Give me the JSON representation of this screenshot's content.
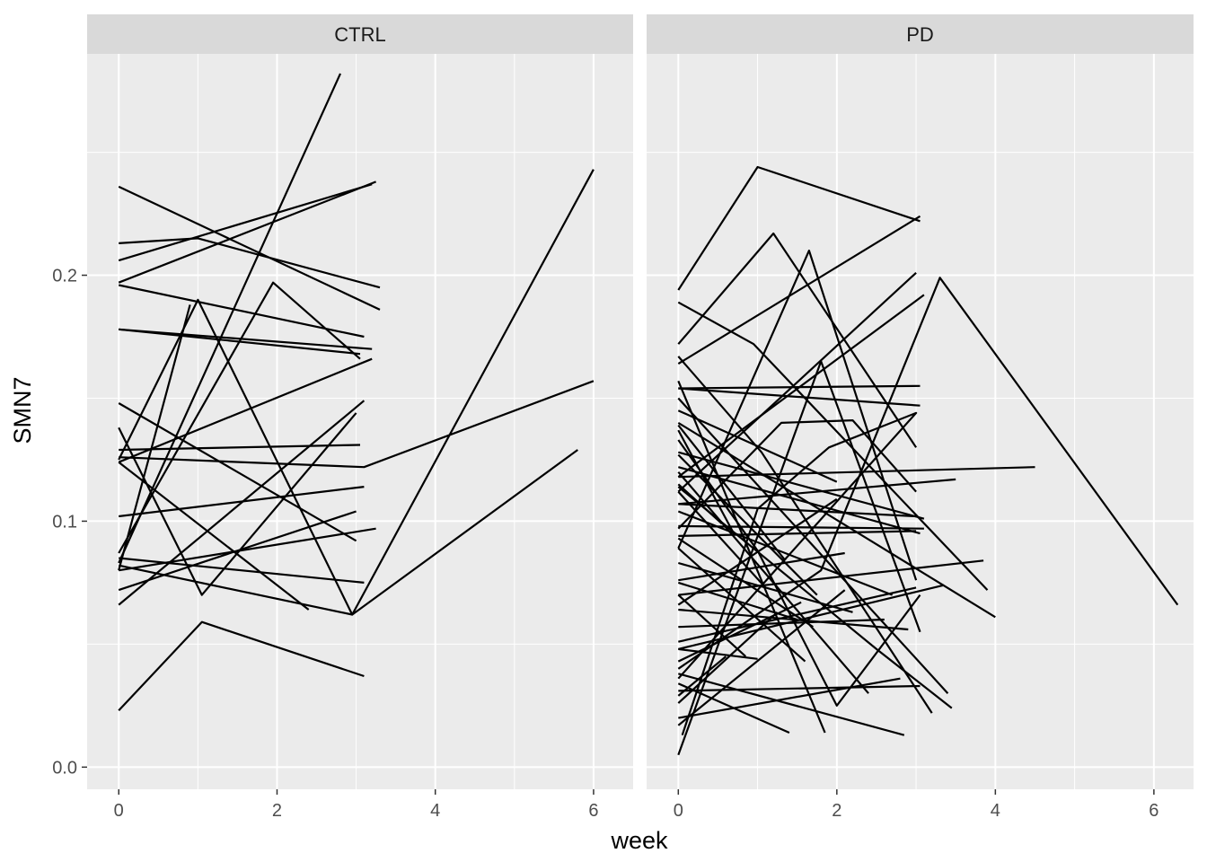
{
  "chart_data": {
    "type": "line",
    "xlabel": "week",
    "ylabel": "SMN7",
    "xlim": [
      -0.4,
      6.5
    ],
    "ylim": [
      -0.009,
      0.29
    ],
    "x_ticks": [
      0,
      2,
      4,
      6
    ],
    "x_tick_labels": [
      "0",
      "2",
      "4",
      "6"
    ],
    "y_ticks": [
      0.0,
      0.1,
      0.2
    ],
    "y_tick_labels": [
      "0.0",
      "0.1",
      "0.2"
    ],
    "grid": true,
    "legend": "none",
    "colors": {
      "panel_bg": "#EBEBEB",
      "strip_bg": "#D9D9D9",
      "grid": "#FFFFFF",
      "line": "#000000",
      "tick": "#333333"
    },
    "facets": [
      {
        "label": "CTRL",
        "series": [
          {
            "x": [
              0,
              2.8
            ],
            "y": [
              0.083,
              0.282
            ]
          },
          {
            "x": [
              0,
              1.0,
              2.95,
              6.0
            ],
            "y": [
              0.125,
              0.19,
              0.062,
              0.243
            ]
          },
          {
            "x": [
              0,
              3.3
            ],
            "y": [
              0.236,
              0.186
            ]
          },
          {
            "x": [
              0,
              3.2
            ],
            "y": [
              0.206,
              0.237
            ]
          },
          {
            "x": [
              0,
              3.25
            ],
            "y": [
              0.197,
              0.238
            ]
          },
          {
            "x": [
              0,
              1.0,
              3.3
            ],
            "y": [
              0.213,
              0.215,
              0.195
            ]
          },
          {
            "x": [
              0,
              3.1
            ],
            "y": [
              0.196,
              0.175
            ]
          },
          {
            "x": [
              0,
              3.2
            ],
            "y": [
              0.178,
              0.17
            ]
          },
          {
            "x": [
              0,
              1.95,
              3.05
            ],
            "y": [
              0.087,
              0.197,
              0.166
            ]
          },
          {
            "x": [
              0,
              3.2
            ],
            "y": [
              0.124,
              0.166
            ]
          },
          {
            "x": [
              0,
              3.1,
              6.0
            ],
            "y": [
              0.126,
              0.122,
              0.157
            ]
          },
          {
            "x": [
              0,
              3.1
            ],
            "y": [
              0.102,
              0.114
            ]
          },
          {
            "x": [
              0,
              3.0
            ],
            "y": [
              0.148,
              0.092
            ]
          },
          {
            "x": [
              0,
              2.4
            ],
            "y": [
              0.124,
              0.064
            ]
          },
          {
            "x": [
              0,
              3.05
            ],
            "y": [
              0.129,
              0.131
            ]
          },
          {
            "x": [
              0,
              1.05,
              3.0
            ],
            "y": [
              0.138,
              0.07,
              0.144
            ]
          },
          {
            "x": [
              0,
              3.1
            ],
            "y": [
              0.066,
              0.149
            ]
          },
          {
            "x": [
              0,
              3.1
            ],
            "y": [
              0.085,
              0.075
            ]
          },
          {
            "x": [
              0,
              2.95,
              5.8
            ],
            "y": [
              0.082,
              0.062,
              0.129
            ]
          },
          {
            "x": [
              0,
              3.0
            ],
            "y": [
              0.072,
              0.104
            ]
          },
          {
            "x": [
              0,
              3.25
            ],
            "y": [
              0.08,
              0.097
            ]
          },
          {
            "x": [
              0,
              1.05,
              3.1
            ],
            "y": [
              0.023,
              0.059,
              0.037
            ]
          },
          {
            "x": [
              0,
              0.9
            ],
            "y": [
              0.08,
              0.188
            ]
          },
          {
            "x": [
              0,
              3.05
            ],
            "y": [
              0.178,
              0.168
            ]
          }
        ]
      },
      {
        "label": "PD",
        "series": [
          {
            "x": [
              0,
              1.0,
              3.05
            ],
            "y": [
              0.194,
              0.244,
              0.222
            ]
          },
          {
            "x": [
              0,
              3.05
            ],
            "y": [
              0.164,
              0.224
            ]
          },
          {
            "x": [
              0,
              1.2,
              3.0
            ],
            "y": [
              0.172,
              0.217,
              0.13
            ]
          },
          {
            "x": [
              0,
              1.65,
              3.0
            ],
            "y": [
              0.089,
              0.21,
              0.076
            ]
          },
          {
            "x": [
              0,
              3.0
            ],
            "y": [
              0.112,
              0.201
            ]
          },
          {
            "x": [
              0,
              3.1
            ],
            "y": [
              0.118,
              0.192
            ]
          },
          {
            "x": [
              0,
              0.95,
              3.9
            ],
            "y": [
              0.189,
              0.172,
              0.072
            ]
          },
          {
            "x": [
              0,
              3.05
            ],
            "y": [
              0.154,
              0.155
            ]
          },
          {
            "x": [
              0,
              3.05
            ],
            "y": [
              0.154,
              0.147
            ]
          },
          {
            "x": [
              0,
              1.8,
              3.3,
              6.3
            ],
            "y": [
              0.04,
              0.08,
              0.199,
              0.066
            ]
          },
          {
            "x": [
              0,
              4.5
            ],
            "y": [
              0.118,
              0.122
            ]
          },
          {
            "x": [
              0,
              3.85
            ],
            "y": [
              0.07,
              0.084
            ]
          },
          {
            "x": [
              0,
              4.0
            ],
            "y": [
              0.14,
              0.061
            ]
          },
          {
            "x": [
              0,
              3.0,
              1.9,
              1.0,
              0.05
            ],
            "y": [
              0.036,
              0.144,
              0.13,
              0.105,
              0.013
            ]
          },
          {
            "x": [
              0,
              1.05,
              3.2
            ],
            "y": [
              0.167,
              0.128,
              0.022
            ]
          },
          {
            "x": [
              0,
              1.8,
              3.05
            ],
            "y": [
              0.005,
              0.165,
              0.055
            ]
          },
          {
            "x": [
              0,
              3.1
            ],
            "y": [
              0.128,
              0.101
            ]
          },
          {
            "x": [
              0,
              3.5
            ],
            "y": [
              0.107,
              0.117
            ]
          },
          {
            "x": [
              0,
              2.7
            ],
            "y": [
              0.104,
              0.07
            ]
          },
          {
            "x": [
              0,
              3.4
            ],
            "y": [
              0.15,
              0.03
            ]
          },
          {
            "x": [
              0,
              1.3,
              2.2,
              3.0
            ],
            "y": [
              0.097,
              0.14,
              0.141,
              0.112
            ]
          },
          {
            "x": [
              0,
              1.85
            ],
            "y": [
              0.157,
              0.014
            ]
          },
          {
            "x": [
              0,
              2.85
            ],
            "y": [
              0.038,
              0.013
            ]
          },
          {
            "x": [
              0,
              3.0
            ],
            "y": [
              0.094,
              0.096
            ]
          },
          {
            "x": [
              0,
              2.1
            ],
            "y": [
              0.017,
              0.072
            ]
          },
          {
            "x": [
              0,
              3.0
            ],
            "y": [
              0.051,
              0.073
            ]
          },
          {
            "x": [
              0,
              2.6
            ],
            "y": [
              0.057,
              0.06
            ]
          },
          {
            "x": [
              0,
              3.05
            ],
            "y": [
              0.031,
              0.033
            ]
          },
          {
            "x": [
              0,
              3.35
            ],
            "y": [
              0.048,
              0.074
            ]
          },
          {
            "x": [
              0,
              1.0,
              2.0,
              3.05
            ],
            "y": [
              0.133,
              0.088,
              0.025,
              0.07
            ]
          },
          {
            "x": [
              0,
              2.5,
              3.45
            ],
            "y": [
              0.114,
              0.048,
              0.024
            ]
          },
          {
            "x": [
              0,
              2.0
            ],
            "y": [
              0.145,
              0.116
            ]
          },
          {
            "x": [
              0,
              1.7
            ],
            "y": [
              0.093,
              0.057
            ]
          },
          {
            "x": [
              0,
              0.7
            ],
            "y": [
              0.137,
              0.095
            ]
          },
          {
            "x": [
              0,
              0.6
            ],
            "y": [
              0.029,
              0.045
            ]
          },
          {
            "x": [
              0,
              1.4
            ],
            "y": [
              0.034,
              0.014
            ]
          },
          {
            "x": [
              0,
              2.1
            ],
            "y": [
              0.076,
              0.087
            ]
          },
          {
            "x": [
              0,
              1.5
            ],
            "y": [
              0.075,
              0.06
            ]
          },
          {
            "x": [
              0,
              2.2
            ],
            "y": [
              0.083,
              0.063
            ]
          },
          {
            "x": [
              0,
              2.8
            ],
            "y": [
              0.02,
              0.036
            ]
          },
          {
            "x": [
              0,
              3.05
            ],
            "y": [
              0.122,
              0.095
            ]
          },
          {
            "x": [
              0,
              1.1
            ],
            "y": [
              0.112,
              0.073
            ]
          },
          {
            "x": [
              0,
              1.55
            ],
            "y": [
              0.043,
              0.067
            ]
          },
          {
            "x": [
              0,
              3.1
            ],
            "y": [
              0.098,
              0.097
            ]
          },
          {
            "x": [
              0,
              1.0
            ],
            "y": [
              0.048,
              0.044
            ]
          },
          {
            "x": [
              0,
              0.55
            ],
            "y": [
              0.115,
              0.099
            ]
          },
          {
            "x": [
              0,
              2.9
            ],
            "y": [
              0.064,
              0.056
            ]
          },
          {
            "x": [
              0,
              1.35
            ],
            "y": [
              0.139,
              0.084
            ]
          },
          {
            "x": [
              0,
              0.85
            ],
            "y": [
              0.07,
              0.045
            ]
          },
          {
            "x": [
              0,
              1.25
            ],
            "y": [
              0.026,
              0.063
            ]
          },
          {
            "x": [
              0,
              2.4
            ],
            "y": [
              0.12,
              0.03
            ]
          },
          {
            "x": [
              0,
              1.6
            ],
            "y": [
              0.089,
              0.043
            ]
          },
          {
            "x": [
              0,
              2.0
            ],
            "y": [
              0.066,
              0.109
            ]
          },
          {
            "x": [
              0,
              3.0
            ],
            "y": [
              0.107,
              0.102
            ]
          },
          {
            "x": [
              0,
              1.75
            ],
            "y": [
              0.127,
              0.07
            ]
          }
        ]
      }
    ]
  }
}
